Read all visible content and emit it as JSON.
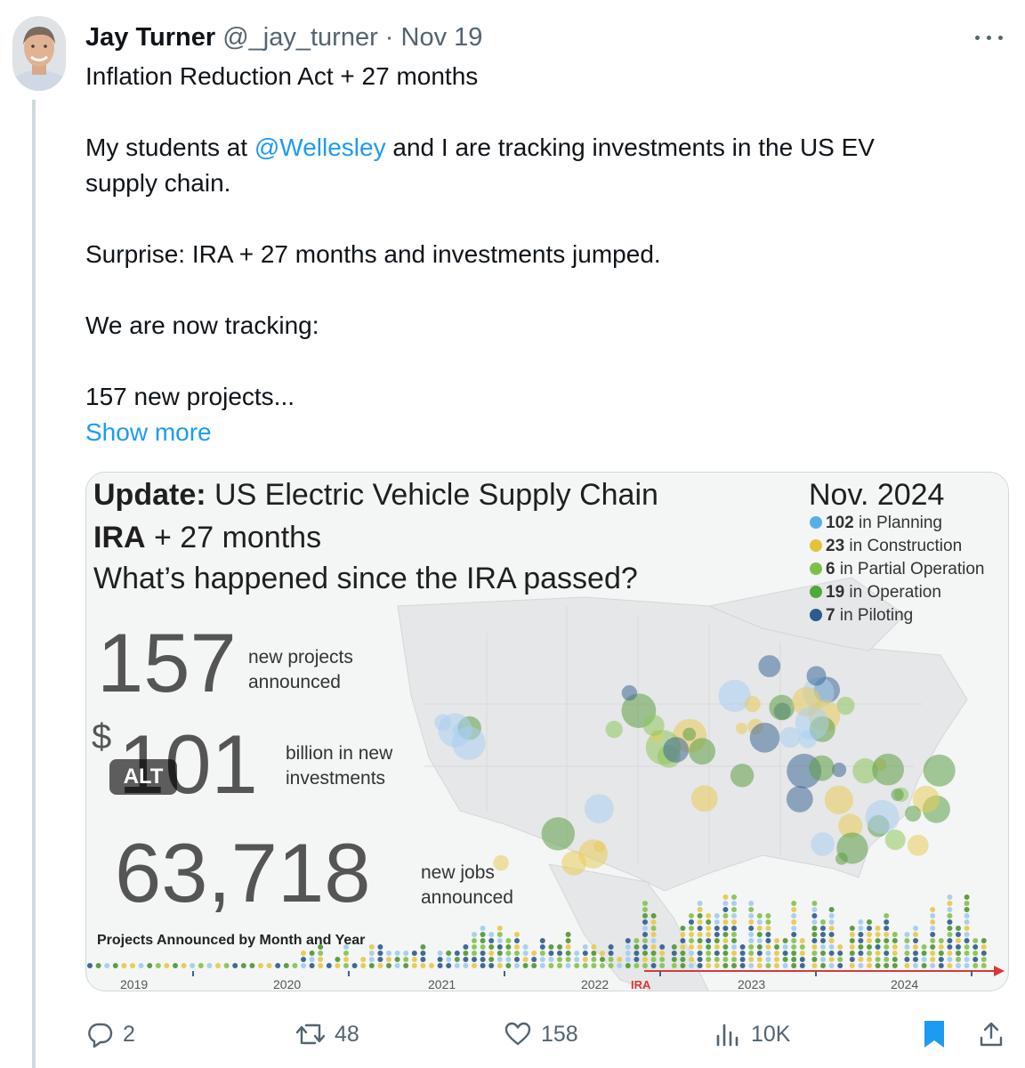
{
  "tweet": {
    "author_name": "Jay Turner",
    "handle": "@_jay_turner",
    "separator": "·",
    "date": "Nov 19",
    "line1": "Inflation Reduction Act + 27 months",
    "line2_before": "My students at ",
    "mention": "@Wellesley",
    "line2_after": " and I are tracking investments in the US EV",
    "line3": "supply chain.",
    "line4": "Surprise: IRA + 27 months and investments jumped.",
    "line5": "We are now tracking:",
    "line6": "157 new projects...",
    "show_more": "Show more"
  },
  "image": {
    "update_label": "Update:",
    "title_rest": " US Electric Vehicle Supply Chain",
    "date": "Nov. 2024",
    "ira": "IRA",
    "ira_rest": " + 27 months",
    "question": "What’s happened since the IRA passed?",
    "stat1_value": "157",
    "stat1_line1": "new projects",
    "stat1_line2": "announced",
    "stat2_prefix": "$",
    "stat2_value": "101",
    "stat2_line1": "billion in new",
    "stat2_line2": "investments",
    "stat3_value": "63,718",
    "stat3_line1": "new jobs",
    "stat3_line2": "announced",
    "legend": [
      {
        "count": "102",
        "label": " in Planning",
        "color": "#5aaee8"
      },
      {
        "count": "23",
        "label": " in Construction",
        "color": "#e3c23c"
      },
      {
        "count": "6",
        "label": " in Partial Operation",
        "color": "#7cc04a"
      },
      {
        "count": "19",
        "label": " in Operation",
        "color": "#4ea83c"
      },
      {
        "count": "7",
        "label": " in Piloting",
        "color": "#2c5c8c"
      }
    ],
    "timeline_title": "Projects Announced by Month and Year",
    "years": [
      "2019",
      "2020",
      "2021",
      "2022",
      "IRA",
      "2023",
      "2024"
    ],
    "alt_badge": "ALT"
  },
  "actions": {
    "replies": "2",
    "reposts": "48",
    "likes": "158",
    "views": "10K"
  },
  "colors": {
    "link": "#1d9bf0",
    "muted": "#536471",
    "ira_red": "#d93838"
  }
}
